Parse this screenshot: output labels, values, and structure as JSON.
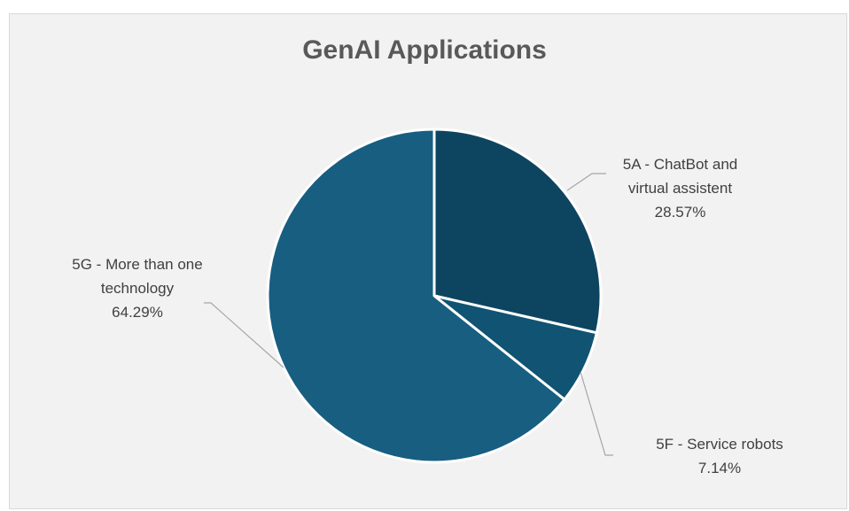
{
  "chart_data": {
    "type": "pie",
    "title": "GenAI Applications",
    "categories": [
      "5A - ChatBot and virtual assistent",
      "5F - Service robots",
      "5G - More than one technology"
    ],
    "values": [
      28.57,
      7.14,
      64.29
    ],
    "value_labels": [
      "28.57%",
      "7.14%",
      "64.29%"
    ],
    "colors": [
      "#0d4560",
      "#105372",
      "#175e81"
    ]
  }
}
